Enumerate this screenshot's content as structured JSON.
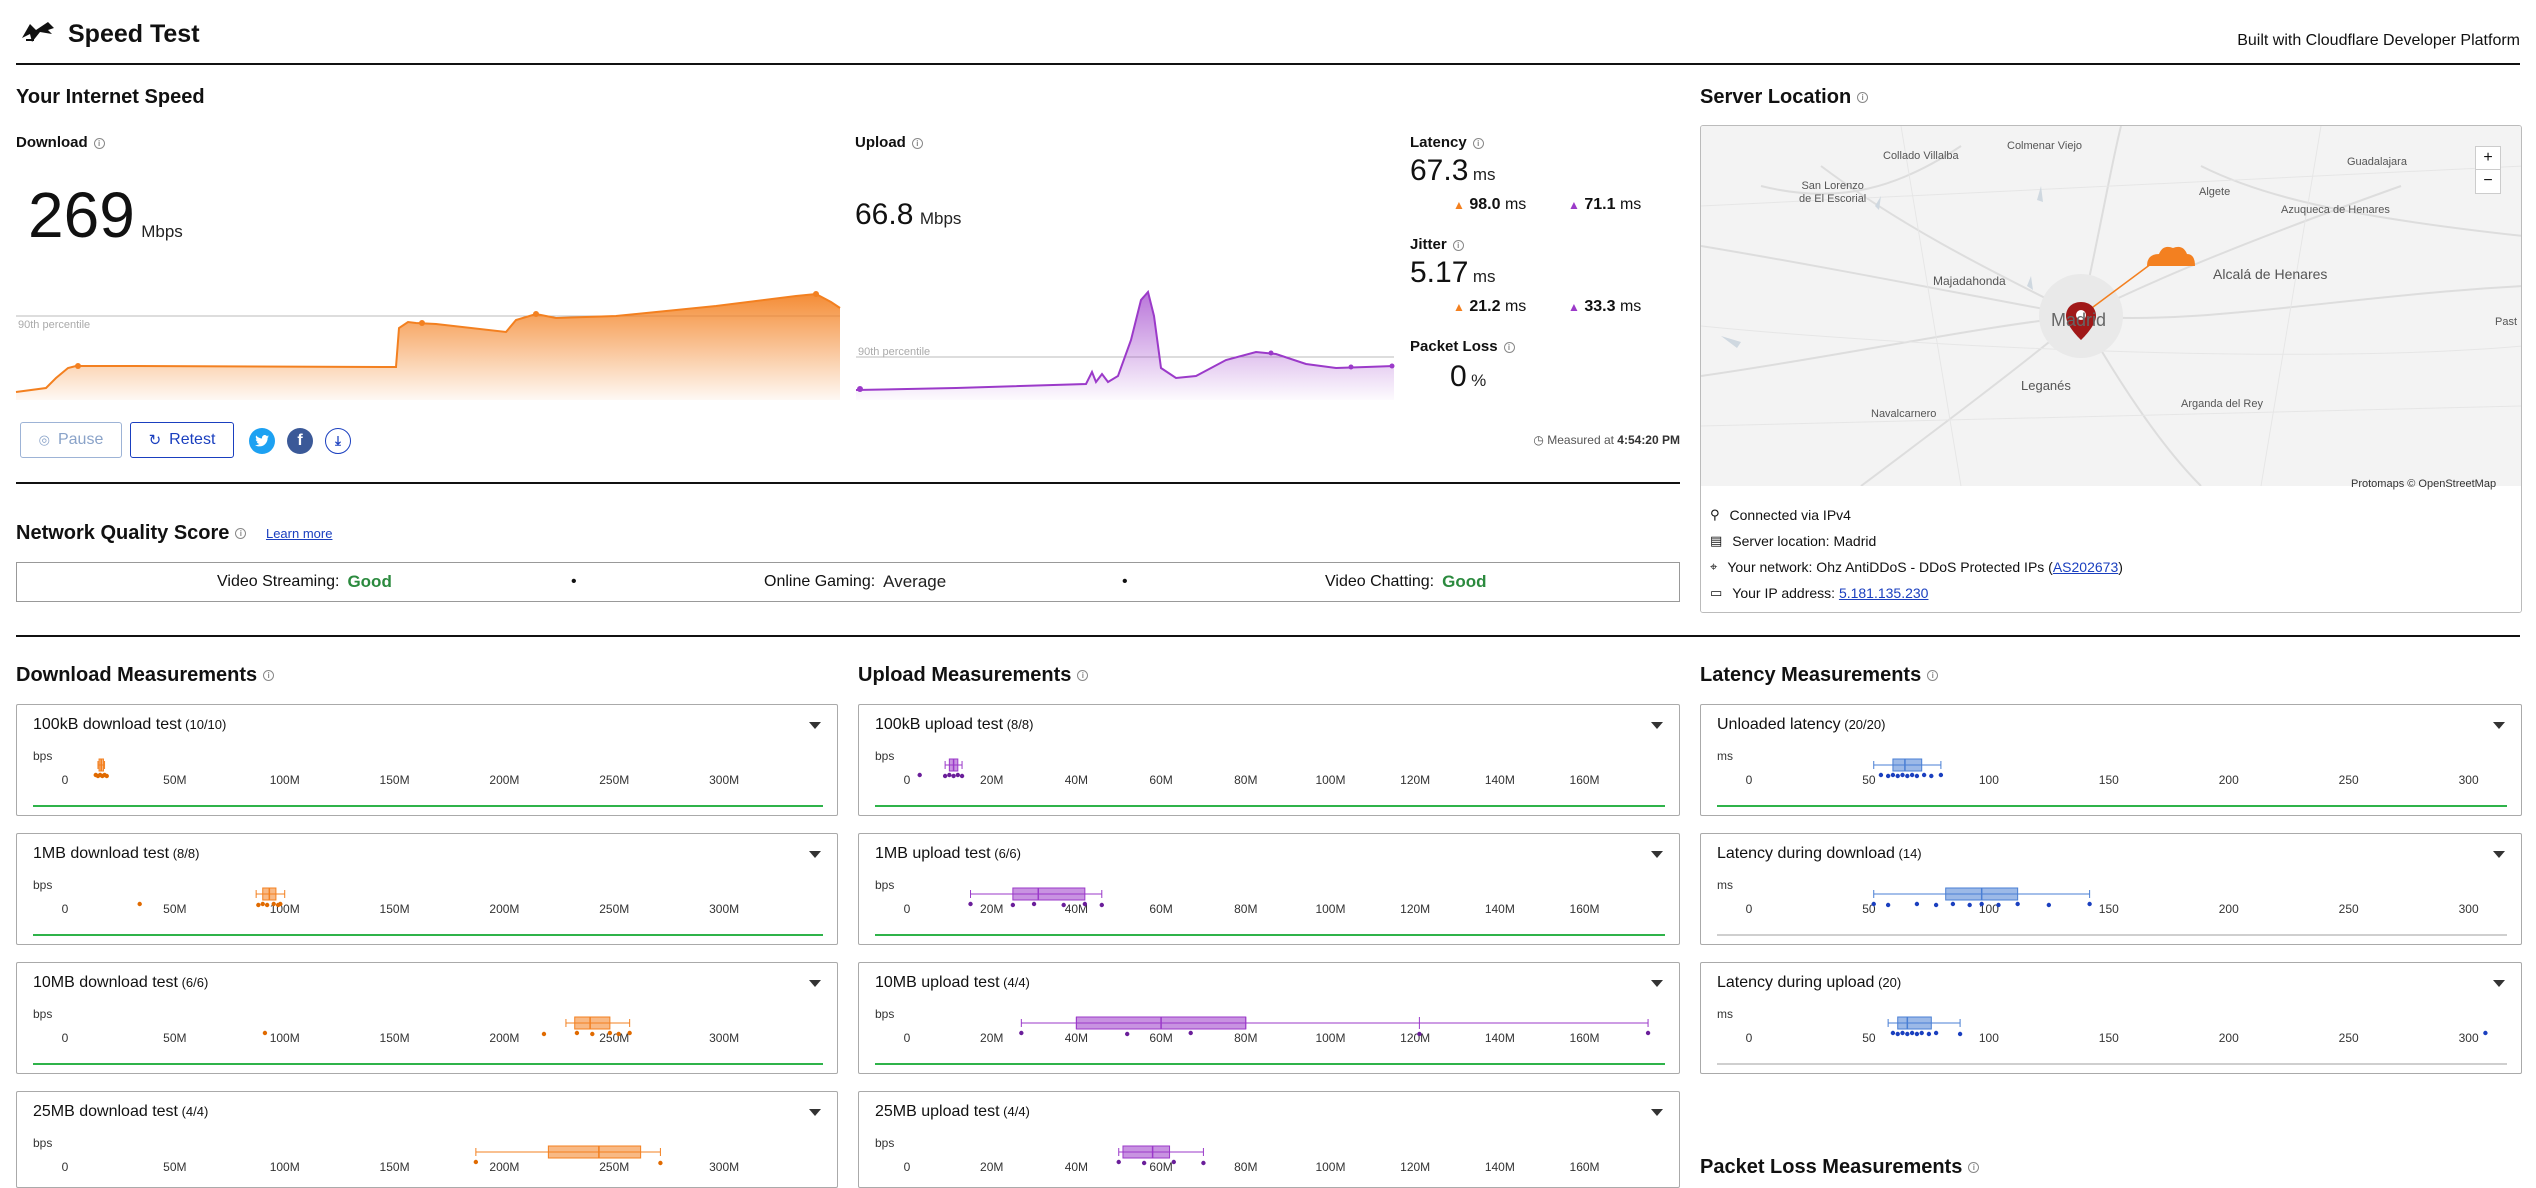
{
  "header": {
    "title": "Speed Test",
    "built_with": "Built with Cloudflare Developer Platform"
  },
  "speed": {
    "section_title": "Your Internet Speed",
    "download": {
      "label": "Download",
      "value": "269",
      "unit": "Mbps",
      "percentile_label": "90th percentile"
    },
    "upload": {
      "label": "Upload",
      "value": "66.8",
      "unit": "Mbps",
      "percentile_label": "90th percentile"
    },
    "latency": {
      "label": "Latency",
      "value": "67.3",
      "unit": "ms",
      "down": "98.0",
      "up": "71.1",
      "sub_unit": "ms"
    },
    "jitter": {
      "label": "Jitter",
      "value": "5.17",
      "unit": "ms",
      "down": "21.2",
      "up": "33.3",
      "sub_unit": "ms"
    },
    "packet_loss": {
      "label": "Packet Loss",
      "value": "0",
      "unit": "%"
    },
    "pause_label": "Pause",
    "retest_label": "Retest",
    "measured_prefix": "Measured at",
    "measured_time": "4:54:20 PM"
  },
  "nqs": {
    "title": "Network Quality Score",
    "learn_more": "Learn more",
    "items": [
      {
        "label": "Video Streaming:",
        "value": "Good"
      },
      {
        "label": "Online Gaming:",
        "value": "Average"
      },
      {
        "label": "Video Chatting:",
        "value": "Good"
      }
    ],
    "separator": "•"
  },
  "server": {
    "title": "Server Location",
    "map_labels": {
      "collado": "Collado Villalba",
      "colmenar": "Colmenar Viejo",
      "guadalajara": "Guadalajara",
      "sanlorenzo1": "San Lorenzo",
      "sanlorenzo2": "de El Escorial",
      "algete": "Algete",
      "azuqueca": "Azuqueca de Henares",
      "alcala": "Alcalá de Henares",
      "majadahonda": "Majadahonda",
      "madrid": "Madrid",
      "pastrana": "Past",
      "leganes": "Leganés",
      "navalcarnero": "Navalcarnero",
      "arganda": "Arganda del Rey",
      "attribution": "Protomaps © OpenStreetMap"
    },
    "zoom_in": "+",
    "zoom_out": "−",
    "connected_via": "Connected via IPv4",
    "server_location": "Server location: Madrid",
    "network_prefix": "Your network: Ohz AntiDDoS - DDoS Protected IPs (",
    "network_as": "AS202673",
    "network_suffix": ")",
    "ip_prefix": "Your IP address:",
    "ip_value": "5.181.135.230"
  },
  "colors": {
    "download": "#f38020",
    "upload": "#9b3ac9",
    "latency": "#4a7fd4",
    "good": "#2b8a3e",
    "twitter": "#1da1f2",
    "facebook": "#3b5998",
    "link": "#1a3fbf"
  },
  "measurements": {
    "download": {
      "title": "Download Measurements",
      "axis_unit": "bps",
      "ticks": [
        "0",
        "50M",
        "100M",
        "150M",
        "200M",
        "250M",
        "300M"
      ],
      "tick_values": [
        0,
        50,
        100,
        150,
        200,
        250,
        300
      ],
      "range": [
        0,
        345
      ],
      "cards": [
        {
          "title": "100kB download test",
          "count": "(10/10)",
          "box": [
            15,
            15.5,
            16.5,
            17.5,
            18
          ],
          "points": [
            14,
            15,
            16,
            17,
            18,
            19
          ]
        },
        {
          "title": "1MB download test",
          "count": "(8/8)",
          "box": [
            87,
            90,
            93,
            96,
            100
          ],
          "points": [
            34,
            88,
            90,
            92,
            95,
            97,
            98
          ]
        },
        {
          "title": "10MB download test",
          "count": "(6/6)",
          "box": [
            228,
            232,
            239,
            248,
            257
          ],
          "points": [
            91,
            218,
            233,
            240,
            248,
            252,
            257
          ]
        },
        {
          "title": "25MB download test",
          "count": "(4/4)",
          "box": [
            187,
            220,
            243,
            262,
            271
          ],
          "points": [
            187,
            271
          ]
        }
      ]
    },
    "upload": {
      "title": "Upload Measurements",
      "axis_unit": "bps",
      "ticks": [
        "0",
        "20M",
        "40M",
        "60M",
        "80M",
        "100M",
        "120M",
        "140M",
        "160M"
      ],
      "tick_values": [
        0,
        20,
        40,
        60,
        80,
        100,
        120,
        140,
        160
      ],
      "range": [
        0,
        179
      ],
      "cards": [
        {
          "title": "100kB upload test",
          "count": "(8/8)",
          "box": [
            9,
            10,
            11,
            12,
            13
          ],
          "points": [
            3,
            9,
            10,
            11,
            12,
            13
          ]
        },
        {
          "title": "1MB upload test",
          "count": "(6/6)",
          "box": [
            15,
            25,
            31,
            42,
            46
          ],
          "points": [
            15,
            25,
            30,
            37,
            42,
            46
          ]
        },
        {
          "title": "10MB upload test",
          "count": "(4/4)",
          "box": [
            27,
            40,
            60,
            80,
            121,
            175
          ],
          "points": [
            27,
            52,
            67,
            121,
            175
          ]
        },
        {
          "title": "25MB upload test",
          "count": "(4/4)",
          "box": [
            50,
            51,
            58,
            62,
            70
          ],
          "points": [
            50,
            56,
            63,
            70
          ]
        }
      ]
    },
    "latency": {
      "title": "Latency Measurements",
      "axis_unit": "ms",
      "ticks": [
        "0",
        "50",
        "100",
        "150",
        "200",
        "250",
        "300"
      ],
      "tick_values": [
        0,
        50,
        100,
        150,
        200,
        250,
        300
      ],
      "range": [
        0,
        316
      ],
      "cards": [
        {
          "title": "Unloaded latency",
          "count": "(20/20)",
          "box": [
            52,
            60,
            65,
            72,
            80
          ],
          "points": [
            55,
            58,
            60,
            62,
            64,
            66,
            68,
            70,
            73,
            76,
            80
          ]
        },
        {
          "title": "Latency during download",
          "count": "(14)",
          "box": [
            52,
            82,
            97,
            112,
            142
          ],
          "points": [
            52,
            58,
            70,
            78,
            85,
            92,
            97,
            104,
            112,
            125,
            142
          ]
        },
        {
          "title": "Latency during upload",
          "count": "(20)",
          "box": [
            58,
            62,
            66,
            76,
            88
          ],
          "points": [
            60,
            62,
            64,
            66,
            68,
            70,
            72,
            75,
            78,
            88,
            307
          ]
        }
      ]
    },
    "packet_loss_title": "Packet Loss Measurements"
  }
}
